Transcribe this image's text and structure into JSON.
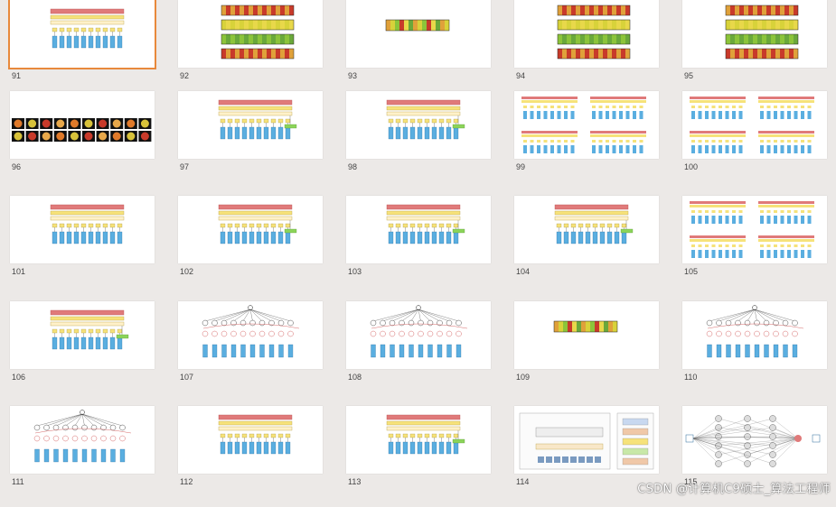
{
  "slides": [
    {
      "number": "91",
      "type": "stack",
      "selected": true
    },
    {
      "number": "92",
      "type": "heat-rows"
    },
    {
      "number": "93",
      "type": "heat-one"
    },
    {
      "number": "94",
      "type": "heat-rows"
    },
    {
      "number": "95",
      "type": "heat-rows"
    },
    {
      "number": "96",
      "type": "heat-tiles"
    },
    {
      "number": "97",
      "type": "stack-link"
    },
    {
      "number": "98",
      "type": "stack-link"
    },
    {
      "number": "99",
      "type": "quad"
    },
    {
      "number": "100",
      "type": "quad"
    },
    {
      "number": "101",
      "type": "stack"
    },
    {
      "number": "102",
      "type": "stack-link"
    },
    {
      "number": "103",
      "type": "stack-link"
    },
    {
      "number": "104",
      "type": "stack-link"
    },
    {
      "number": "105",
      "type": "quad"
    },
    {
      "number": "106",
      "type": "stack-link"
    },
    {
      "number": "107",
      "type": "tree"
    },
    {
      "number": "108",
      "type": "tree"
    },
    {
      "number": "109",
      "type": "heat-one"
    },
    {
      "number": "110",
      "type": "tree"
    },
    {
      "number": "111",
      "type": "tree"
    },
    {
      "number": "112",
      "type": "stack"
    },
    {
      "number": "113",
      "type": "stack-link"
    },
    {
      "number": "114",
      "type": "vit"
    },
    {
      "number": "115",
      "type": "mlp"
    }
  ],
  "watermark": "CSDN @计算机C9硕士_算法工程师",
  "colors": {
    "red": "#e07a7a",
    "yellow": "#f6e27a",
    "blue": "#5aaee0",
    "green": "#8cd45a",
    "selected": "#e8893c"
  }
}
